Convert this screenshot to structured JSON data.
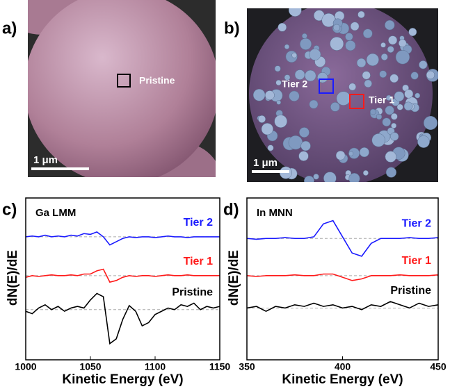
{
  "panels": [
    {
      "label": "a)",
      "annotations": [
        "Pristine"
      ],
      "scale_bar": "1 μm"
    },
    {
      "label": "b)",
      "annotations": [
        "Tier 2",
        "Tier 1"
      ],
      "scale_bar": "1 μm"
    }
  ],
  "chart_data": [
    {
      "type": "line",
      "label": "c)",
      "title": "Ga LMM",
      "xlabel": "Kinetic Energy (eV)",
      "ylabel": "dN(E)/dE",
      "x": [
        1000,
        1005,
        1010,
        1015,
        1020,
        1025,
        1030,
        1035,
        1040,
        1045,
        1050,
        1055,
        1060,
        1065,
        1070,
        1075,
        1080,
        1085,
        1090,
        1095,
        1100,
        1105,
        1110,
        1115,
        1120,
        1125,
        1130,
        1135,
        1140,
        1145,
        1150
      ],
      "series": [
        {
          "name": "Tier 2",
          "color": "#1a1aff",
          "values": [
            7.6,
            7.65,
            7.6,
            7.7,
            7.6,
            7.65,
            7.6,
            7.7,
            7.65,
            7.8,
            7.75,
            7.9,
            7.6,
            7.1,
            7.3,
            7.5,
            7.6,
            7.55,
            7.6,
            7.6,
            7.55,
            7.6,
            7.65,
            7.6,
            7.6,
            7.55,
            7.6,
            7.6,
            7.6,
            7.6,
            7.6
          ]
        },
        {
          "name": "Tier 1",
          "color": "#ff1a1a",
          "values": [
            5.1,
            5.2,
            5.15,
            5.2,
            5.25,
            5.2,
            5.2,
            5.25,
            5.2,
            5.3,
            5.3,
            5.5,
            5.6,
            4.8,
            4.9,
            5.1,
            5.2,
            5.15,
            5.2,
            5.2,
            5.15,
            5.2,
            5.25,
            5.2,
            5.2,
            5.25,
            5.2,
            5.2,
            5.2,
            5.2,
            5.2
          ]
        },
        {
          "name": "Pristine",
          "color": "#000000",
          "values": [
            3.0,
            2.85,
            3.2,
            3.4,
            3.1,
            3.3,
            3.0,
            3.2,
            3.3,
            3.2,
            3.7,
            4.1,
            3.9,
            1.0,
            1.3,
            2.5,
            3.35,
            3.0,
            2.1,
            2.3,
            2.8,
            3.0,
            3.2,
            3.1,
            3.4,
            3.3,
            3.5,
            3.1,
            3.3,
            3.2,
            3.3
          ]
        }
      ],
      "hlines": [
        7.6,
        5.2,
        3.1
      ],
      "xlim": [
        1000,
        1150
      ],
      "xticks": [
        1000,
        1050,
        1100,
        1150
      ],
      "ylim": [
        0,
        10
      ]
    },
    {
      "type": "line",
      "label": "d)",
      "title": "In MNN",
      "xlabel": "Kinetic Energy (eV)",
      "ylabel": "dN(E)/dE",
      "x": [
        350,
        355,
        360,
        365,
        370,
        375,
        380,
        385,
        390,
        395,
        400,
        405,
        410,
        415,
        420,
        425,
        430,
        435,
        440,
        445,
        450
      ],
      "series": [
        {
          "name": "Tier 2",
          "color": "#1a1aff",
          "values": [
            7.5,
            7.45,
            7.5,
            7.5,
            7.55,
            7.5,
            7.5,
            7.6,
            8.4,
            8.6,
            7.6,
            6.6,
            6.4,
            7.2,
            7.5,
            7.5,
            7.5,
            7.55,
            7.5,
            7.5,
            7.55
          ]
        },
        {
          "name": "Tier 1",
          "color": "#ff1a1a",
          "values": [
            5.2,
            5.15,
            5.2,
            5.2,
            5.2,
            5.25,
            5.2,
            5.2,
            5.3,
            5.3,
            5.1,
            4.9,
            5.0,
            5.2,
            5.2,
            5.2,
            5.25,
            5.2,
            5.2,
            5.2,
            5.25
          ]
        },
        {
          "name": "Pristine",
          "color": "#000000",
          "values": [
            3.2,
            3.3,
            3.0,
            3.3,
            3.2,
            3.4,
            3.3,
            3.5,
            3.3,
            3.4,
            3.2,
            3.3,
            3.1,
            3.4,
            3.3,
            3.6,
            3.4,
            3.2,
            3.5,
            3.3,
            3.4
          ]
        }
      ],
      "hlines": [
        7.5,
        5.2,
        3.2
      ],
      "xlim": [
        350,
        450
      ],
      "xticks": [
        350,
        400,
        450
      ],
      "ylim": [
        0,
        10
      ]
    }
  ]
}
